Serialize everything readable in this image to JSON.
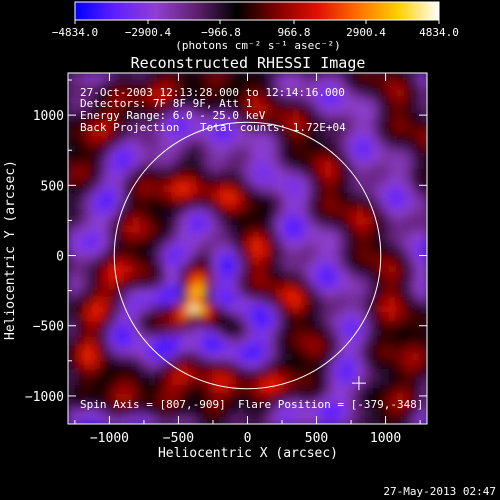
{
  "colorbar": {
    "ticks": [
      "−4834.0",
      "−2900.4",
      "−966.8",
      "966.8",
      "2900.4",
      "4834.0"
    ],
    "unit_label": "(photons cm⁻² s⁻¹ asec⁻²)",
    "range": [
      -4834.0,
      4834.0
    ],
    "stops": [
      "#0000ff",
      "#6020ff",
      "#9040d0",
      "#602070",
      "#000000",
      "#800000",
      "#e01000",
      "#ff7000",
      "#ffd000",
      "#ffffff"
    ]
  },
  "chart_data": {
    "type": "heatmap",
    "title": "Reconstructed RHESSI Image",
    "xlabel": "Heliocentric X (arcsec)",
    "ylabel": "Heliocentric Y (arcsec)",
    "xlim": [
      -1300,
      1300
    ],
    "ylim": [
      -1200,
      1300
    ],
    "xticks": [
      -1000,
      -500,
      0,
      500,
      1000
    ],
    "yticks": [
      1000,
      500,
      0,
      -500,
      -1000
    ],
    "xtick_labels": [
      "−1000",
      "−500",
      "0",
      "500",
      "1000"
    ],
    "ytick_labels": [
      "1000",
      "500",
      "0",
      "−500",
      "−1000"
    ],
    "annotations": [
      "27-Oct-2003 12:13:28.000 to 12:14:16.000",
      "Detectors: 7F 8F 9F, Att 1",
      "Energy Range: 6.0 - 25.0 keV",
      "Back Projection",
      "Total counts: 1.72E+04",
      "Spin Axis = [807,-909]",
      "Flare Position = [-379,-348]"
    ],
    "solar_limb_radius_arcsec": 965,
    "spin_axis": [
      807,
      -909
    ],
    "flare_position": [
      -379,
      -348
    ]
  },
  "footer": {
    "date": "27-May-2013 02:47"
  }
}
